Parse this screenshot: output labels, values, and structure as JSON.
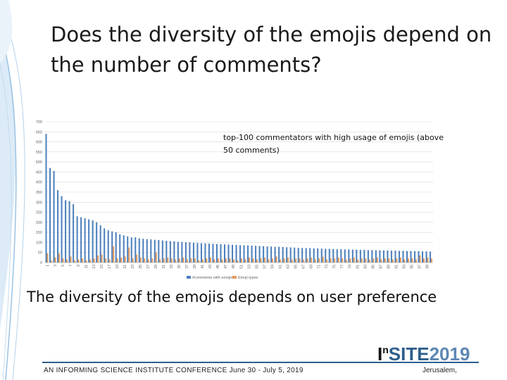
{
  "slide": {
    "title": "Does the diversity of the emojis depend on the number of comments?",
    "caption": "The diversity of the emojis depends on user preference",
    "footer_text": "AN INFORMING SCIENCE INSTITUTE CONFERENCE June 30 - July 5, 2019",
    "footer_location": "Jerusalem,",
    "logo": {
      "part_in": "I",
      "part_sup": "n",
      "part_site": "SITE",
      "part_year": "2019"
    },
    "accent_color": "#2e5f8c"
  },
  "chart_data": {
    "type": "bar",
    "title": "top-100 commentators with high usage of emojis (above 50 comments)",
    "xlabel": "",
    "ylabel": "",
    "ylim": [
      0,
      700
    ],
    "yticks": [
      0,
      50,
      100,
      150,
      200,
      250,
      300,
      350,
      400,
      450,
      500,
      550,
      600,
      650,
      700
    ],
    "tick_labels": [
      "1",
      "3",
      "5",
      "7",
      "9",
      "11",
      "13",
      "15",
      "17",
      "19",
      "21",
      "23",
      "25",
      "27",
      "29",
      "31",
      "33",
      "35",
      "37",
      "39",
      "41",
      "43",
      "45",
      "47",
      "49",
      "51",
      "53",
      "55",
      "57",
      "59",
      "61",
      "63",
      "65",
      "67",
      "69",
      "71",
      "73",
      "75",
      "77",
      "79",
      "81",
      "83",
      "85",
      "87",
      "89",
      "91",
      "93",
      "95",
      "97",
      "99"
    ],
    "grid": true,
    "legend_position": "bottom",
    "series": [
      {
        "name": "#comments with emojis",
        "color": "#4a7ebb",
        "values": [
          640,
          470,
          455,
          360,
          330,
          310,
          305,
          290,
          230,
          225,
          220,
          215,
          210,
          200,
          185,
          170,
          160,
          155,
          150,
          140,
          135,
          130,
          125,
          125,
          120,
          118,
          116,
          115,
          113,
          112,
          110,
          108,
          106,
          105,
          103,
          102,
          100,
          100,
          98,
          97,
          96,
          95,
          94,
          93,
          92,
          91,
          90,
          89,
          88,
          87,
          86,
          85,
          85,
          84,
          83,
          82,
          81,
          80,
          79,
          78,
          78,
          77,
          76,
          75,
          74,
          73,
          72,
          72,
          71,
          70,
          70,
          69,
          68,
          68,
          67,
          66,
          66,
          65,
          65,
          64,
          64,
          63,
          63,
          62,
          62,
          61,
          61,
          60,
          60,
          59,
          59,
          58,
          58,
          57,
          57,
          56,
          56,
          55,
          55,
          54
        ]
      },
      {
        "name": "Emoji types",
        "color": "#e39a5c",
        "values": [
          45,
          10,
          25,
          45,
          20,
          15,
          30,
          10,
          15,
          20,
          10,
          15,
          20,
          35,
          40,
          20,
          15,
          80,
          20,
          25,
          30,
          75,
          20,
          40,
          25,
          20,
          15,
          20,
          50,
          15,
          20,
          25,
          20,
          15,
          20,
          25,
          15,
          20,
          20,
          10,
          15,
          20,
          25,
          15,
          20,
          15,
          20,
          20,
          15,
          10,
          20,
          15,
          25,
          20,
          15,
          20,
          25,
          15,
          20,
          30,
          15,
          20,
          25,
          15,
          20,
          20,
          15,
          20,
          25,
          15,
          20,
          30,
          15,
          20,
          20,
          25,
          20,
          15,
          20,
          25,
          15,
          20,
          20,
          15,
          20,
          25,
          15,
          20,
          20,
          15,
          20,
          25,
          15,
          20,
          20,
          15,
          35,
          20,
          25,
          20
        ]
      }
    ]
  }
}
